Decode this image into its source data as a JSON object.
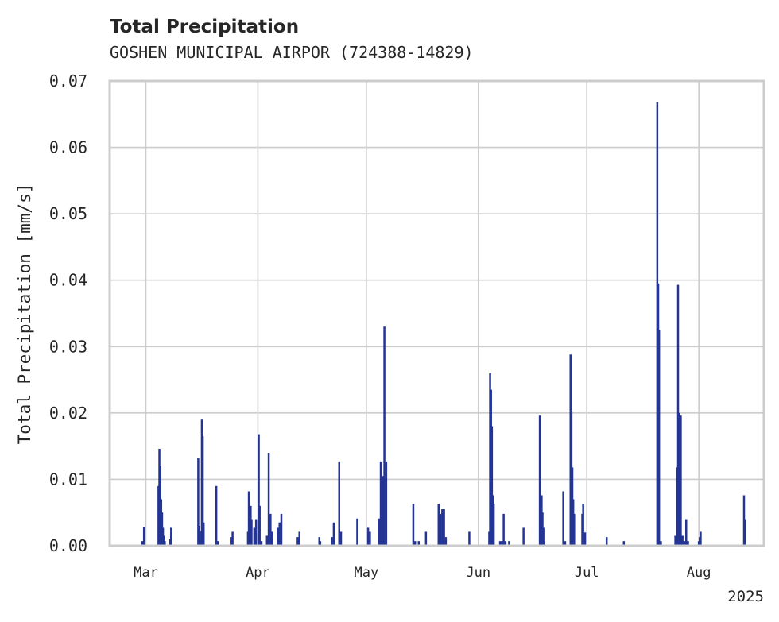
{
  "chart_data": {
    "type": "bar",
    "title": "Total Precipitation",
    "subtitle": "GOSHEN MUNICIPAL AIRPOR (724388-14829)",
    "ylabel": "Total Precipitation [mm/s]",
    "xlabel": "",
    "year_label": "2025",
    "ylim": [
      0,
      0.07
    ],
    "yticks": [
      "0.00",
      "0.01",
      "0.02",
      "0.03",
      "0.04",
      "0.05",
      "0.06",
      "0.07"
    ],
    "xlim": [
      "2025-02-19",
      "2025-08-19"
    ],
    "xticks": [
      {
        "label": "Mar",
        "date": "2025-03-01"
      },
      {
        "label": "Apr",
        "date": "2025-04-01"
      },
      {
        "label": "May",
        "date": "2025-05-01"
      },
      {
        "label": "Jun",
        "date": "2025-06-01"
      },
      {
        "label": "Jul",
        "date": "2025-07-01"
      },
      {
        "label": "Aug",
        "date": "2025-08-01"
      }
    ],
    "grid": true,
    "bar_color": "#233494",
    "series": [
      {
        "points": [
          [
            "2025-02-28T00:00",
            0.0007
          ],
          [
            "2025-02-28T12:00",
            0.0028
          ],
          [
            "2025-03-04T12:00",
            0.009
          ],
          [
            "2025-03-04T18:00",
            0.0146
          ],
          [
            "2025-03-05T00:00",
            0.012
          ],
          [
            "2025-03-05T06:00",
            0.007
          ],
          [
            "2025-03-05T12:00",
            0.005
          ],
          [
            "2025-03-05T18:00",
            0.0027
          ],
          [
            "2025-03-06T00:00",
            0.0015
          ],
          [
            "2025-03-06T06:00",
            0.0007
          ],
          [
            "2025-03-07T18:00",
            0.001
          ],
          [
            "2025-03-08T00:00",
            0.0027
          ],
          [
            "2025-03-15T12:00",
            0.0132
          ],
          [
            "2025-03-15T18:00",
            0.003
          ],
          [
            "2025-03-16T00:00",
            0.0022
          ],
          [
            "2025-03-16T12:00",
            0.019
          ],
          [
            "2025-03-16T18:00",
            0.0165
          ],
          [
            "2025-03-17T00:00",
            0.0035
          ],
          [
            "2025-03-20T12:00",
            0.009
          ],
          [
            "2025-03-21T00:00",
            0.0007
          ],
          [
            "2025-03-24T12:00",
            0.0013
          ],
          [
            "2025-03-25T00:00",
            0.0021
          ],
          [
            "2025-03-29T06:00",
            0.0021
          ],
          [
            "2025-03-29T12:00",
            0.0082
          ],
          [
            "2025-03-30T00:00",
            0.006
          ],
          [
            "2025-03-30T06:00",
            0.004
          ],
          [
            "2025-03-31T00:00",
            0.0027
          ],
          [
            "2025-03-31T12:00",
            0.004
          ],
          [
            "2025-04-01T06:00",
            0.0168
          ],
          [
            "2025-04-01T12:00",
            0.006
          ],
          [
            "2025-04-02T00:00",
            0.0007
          ],
          [
            "2025-04-03T12:00",
            0.0015
          ],
          [
            "2025-04-04T00:00",
            0.014
          ],
          [
            "2025-04-04T12:00",
            0.0048
          ],
          [
            "2025-04-05T00:00",
            0.0021
          ],
          [
            "2025-04-06T12:00",
            0.0027
          ],
          [
            "2025-04-07T00:00",
            0.0035
          ],
          [
            "2025-04-07T12:00",
            0.0048
          ],
          [
            "2025-04-12T00:00",
            0.0013
          ],
          [
            "2025-04-12T12:00",
            0.0021
          ],
          [
            "2025-04-18T00:00",
            0.0013
          ],
          [
            "2025-04-18T06:00",
            0.0007
          ],
          [
            "2025-04-21T12:00",
            0.0013
          ],
          [
            "2025-04-22T00:00",
            0.0035
          ],
          [
            "2025-04-23T12:00",
            0.0127
          ],
          [
            "2025-04-24T00:00",
            0.0021
          ],
          [
            "2025-04-28T12:00",
            0.0041
          ],
          [
            "2025-05-01T12:00",
            0.0027
          ],
          [
            "2025-05-02T00:00",
            0.0021
          ],
          [
            "2025-05-04T12:00",
            0.0041
          ],
          [
            "2025-05-05T00:00",
            0.0127
          ],
          [
            "2025-05-05T12:00",
            0.0105
          ],
          [
            "2025-05-06T00:00",
            0.033
          ],
          [
            "2025-05-06T12:00",
            0.0127
          ],
          [
            "2025-05-14T00:00",
            0.0063
          ],
          [
            "2025-05-14T12:00",
            0.0007
          ],
          [
            "2025-05-15T12:00",
            0.0007
          ],
          [
            "2025-05-17T12:00",
            0.0021
          ],
          [
            "2025-05-21T00:00",
            0.0063
          ],
          [
            "2025-05-21T12:00",
            0.0048
          ],
          [
            "2025-05-22T00:00",
            0.0055
          ],
          [
            "2025-05-22T12:00",
            0.0055
          ],
          [
            "2025-05-23T00:00",
            0.0013
          ],
          [
            "2025-05-29T12:00",
            0.0021
          ],
          [
            "2025-06-04T00:00",
            0.0021
          ],
          [
            "2025-06-04T06:00",
            0.026
          ],
          [
            "2025-06-04T12:00",
            0.0235
          ],
          [
            "2025-06-04T18:00",
            0.018
          ],
          [
            "2025-06-05T00:00",
            0.0076
          ],
          [
            "2025-06-05T06:00",
            0.0063
          ],
          [
            "2025-06-07T00:00",
            0.0007
          ],
          [
            "2025-06-07T12:00",
            0.0007
          ],
          [
            "2025-06-08T00:00",
            0.0048
          ],
          [
            "2025-06-08T12:00",
            0.0007
          ],
          [
            "2025-06-09T12:00",
            0.0007
          ],
          [
            "2025-06-13T12:00",
            0.0027
          ],
          [
            "2025-06-18T00:00",
            0.0196
          ],
          [
            "2025-06-18T12:00",
            0.0076
          ],
          [
            "2025-06-18T18:00",
            0.005
          ],
          [
            "2025-06-19T00:00",
            0.0027
          ],
          [
            "2025-06-19T06:00",
            0.0007
          ],
          [
            "2025-06-24T12:00",
            0.0082
          ],
          [
            "2025-06-25T00:00",
            0.0007
          ],
          [
            "2025-06-26T12:00",
            0.0288
          ],
          [
            "2025-06-26T18:00",
            0.0203
          ],
          [
            "2025-06-27T00:00",
            0.0118
          ],
          [
            "2025-06-27T06:00",
            0.007
          ],
          [
            "2025-06-27T12:00",
            0.0048
          ],
          [
            "2025-06-29T18:00",
            0.0048
          ],
          [
            "2025-06-30T00:00",
            0.0063
          ],
          [
            "2025-06-30T12:00",
            0.002
          ],
          [
            "2025-07-06T12:00",
            0.0013
          ],
          [
            "2025-07-11T06:00",
            0.0007
          ],
          [
            "2025-07-20T12:00",
            0.0668
          ],
          [
            "2025-07-20T18:00",
            0.0395
          ],
          [
            "2025-07-21T00:00",
            0.0325
          ],
          [
            "2025-07-21T12:00",
            0.0007
          ],
          [
            "2025-07-25T12:00",
            0.0015
          ],
          [
            "2025-07-26T00:00",
            0.0118
          ],
          [
            "2025-07-26T06:00",
            0.0393
          ],
          [
            "2025-07-26T12:00",
            0.02
          ],
          [
            "2025-07-27T00:00",
            0.0196
          ],
          [
            "2025-07-27T12:00",
            0.0015
          ],
          [
            "2025-07-28T00:00",
            0.0007
          ],
          [
            "2025-07-28T12:00",
            0.004
          ],
          [
            "2025-07-29T00:00",
            0.0007
          ],
          [
            "2025-08-01T00:00",
            0.0007
          ],
          [
            "2025-08-01T06:00",
            0.0013
          ],
          [
            "2025-08-01T12:00",
            0.0021
          ],
          [
            "2025-08-13T12:00",
            0.0076
          ],
          [
            "2025-08-13T18:00",
            0.004
          ]
        ]
      }
    ]
  }
}
